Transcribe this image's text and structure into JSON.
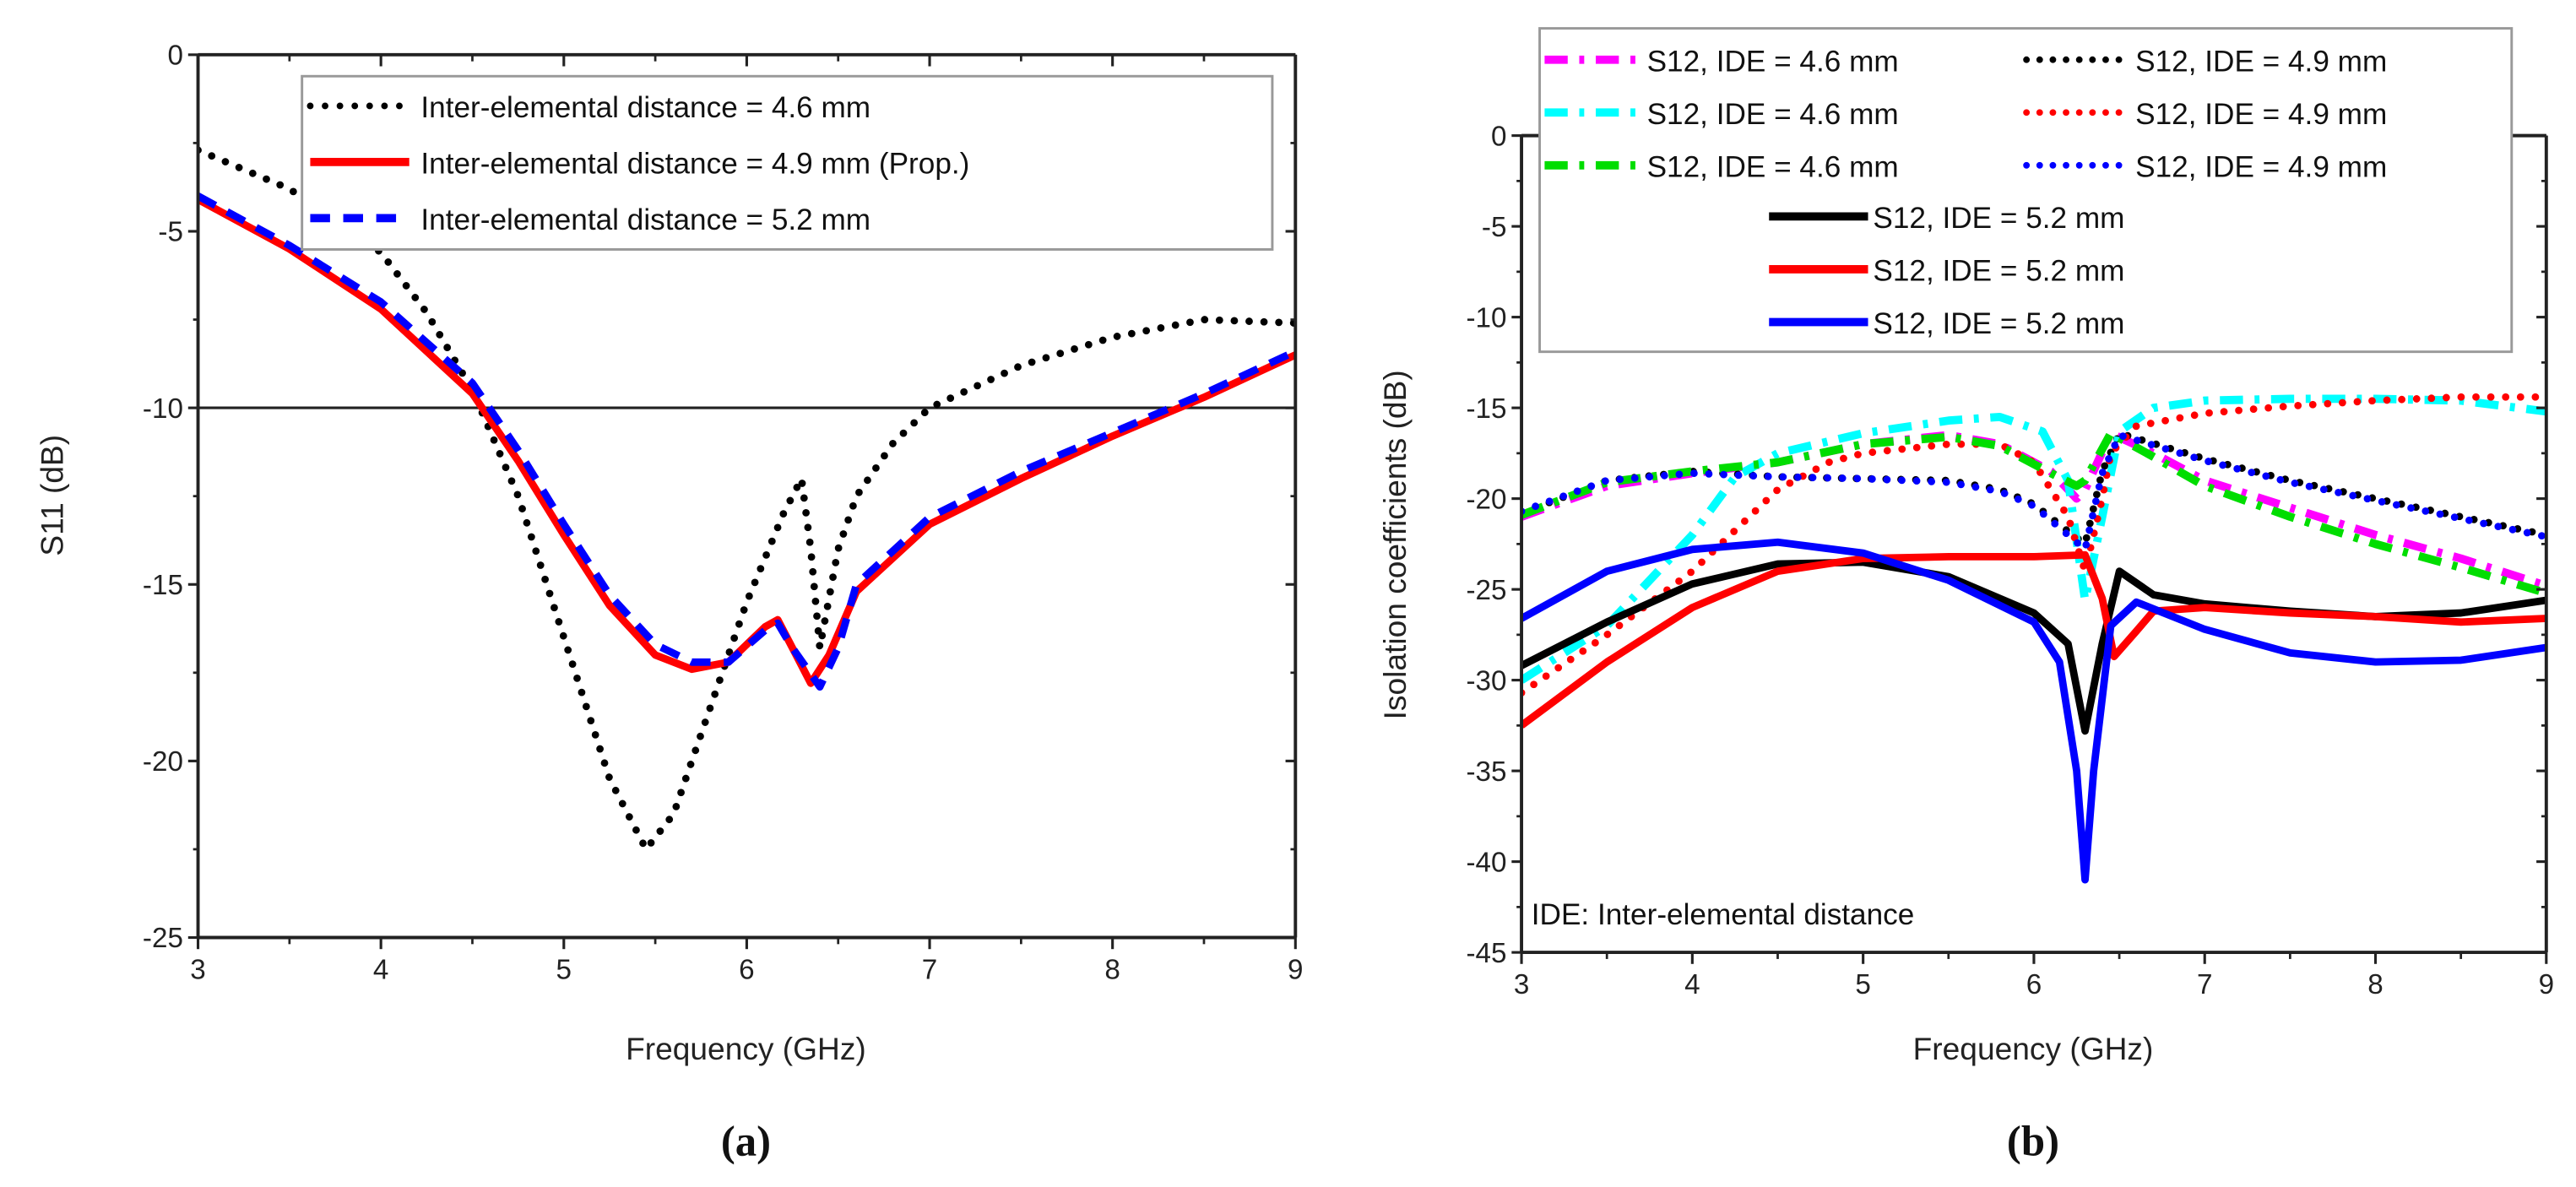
{
  "chart_data": [
    {
      "type": "line",
      "panel_label": "(a)",
      "xlabel": "Frequency (GHz)",
      "ylabel": "S11 (dB)",
      "xlim": [
        3,
        9
      ],
      "ylim": [
        -25,
        0
      ],
      "xticks": [
        "3",
        "4",
        "5",
        "6",
        "7",
        "8",
        "9"
      ],
      "yticks": [
        "0",
        "-5",
        "-10",
        "-15",
        "-20",
        "-25"
      ],
      "reference_line": -10,
      "legend_position": "top-right",
      "series": [
        {
          "name": "Inter-elemental distance = 4.6 mm",
          "color": "#000000",
          "style": "dotted",
          "x": [
            3,
            3.5,
            4,
            4.25,
            4.5,
            4.75,
            5,
            5.25,
            5.45,
            5.6,
            5.8,
            6.0,
            6.2,
            6.3,
            6.35,
            6.4,
            6.5,
            6.6,
            6.8,
            7.0,
            7.5,
            8,
            8.5,
            9
          ],
          "y": [
            -2.7,
            -3.8,
            -5.6,
            -7.3,
            -9.5,
            -12.5,
            -16.5,
            -20.5,
            -22.5,
            -21.5,
            -18.5,
            -15.5,
            -13,
            -12,
            -14,
            -16.8,
            -14,
            -12.5,
            -11,
            -10,
            -8.8,
            -8,
            -7.5,
            -7.6
          ]
        },
        {
          "name": "Inter-elemental distance = 4.9 mm (Prop.)",
          "color": "#ff0000",
          "style": "solid",
          "x": [
            3,
            3.5,
            4,
            4.5,
            4.75,
            5,
            5.25,
            5.5,
            5.7,
            5.9,
            6.1,
            6.17,
            6.25,
            6.35,
            6.45,
            6.6,
            7,
            7.5,
            8,
            8.5,
            9
          ],
          "y": [
            -4.1,
            -5.5,
            -7.2,
            -9.6,
            -11.5,
            -13.6,
            -15.6,
            -17,
            -17.4,
            -17.2,
            -16.2,
            -16,
            -16.8,
            -17.8,
            -17,
            -15.2,
            -13.3,
            -12,
            -10.8,
            -9.7,
            -8.5
          ]
        },
        {
          "name": "Inter-elemental distance = 5.2 mm",
          "color": "#0000ff",
          "style": "dashed",
          "x": [
            3,
            3.5,
            4,
            4.5,
            4.75,
            5,
            5.25,
            5.5,
            5.7,
            5.9,
            6.1,
            6.17,
            6.25,
            6.4,
            6.5,
            6.6,
            7,
            7.5,
            8,
            8.5,
            9
          ],
          "y": [
            -4.0,
            -5.4,
            -7.0,
            -9.3,
            -11.2,
            -13.3,
            -15.3,
            -16.7,
            -17.2,
            -17.2,
            -16.3,
            -16.1,
            -16.8,
            -17.9,
            -16.8,
            -15.0,
            -13.1,
            -11.8,
            -10.7,
            -9.6,
            -8.4
          ]
        }
      ]
    },
    {
      "type": "line",
      "panel_label": "(b)",
      "xlabel": "Frequency (GHz)",
      "ylabel": "Isolation coefficients (dB)",
      "xlim": [
        3,
        9
      ],
      "ylim": [
        -45,
        0
      ],
      "xticks": [
        "3",
        "4",
        "5",
        "6",
        "7",
        "8",
        "9"
      ],
      "yticks": [
        "0",
        "-5",
        "-10",
        "-15",
        "-20",
        "-25",
        "-30",
        "-35",
        "-40",
        "-45"
      ],
      "annotation": "IDE: Inter-elemental distance",
      "legend_position": "top",
      "series": [
        {
          "name": "S12, IDE = 4.6 mm",
          "color": "#ff00ff",
          "style": "dashdot",
          "x": [
            3,
            3.5,
            4,
            4.5,
            5,
            5.5,
            5.8,
            6.1,
            6.25,
            6.3,
            6.45,
            6.7,
            7,
            7.5,
            8,
            8.5,
            9
          ],
          "y": [
            -21,
            -19.3,
            -18.6,
            -18,
            -17,
            -16.5,
            -17,
            -18.5,
            -20,
            -19.5,
            -16.4,
            -17.5,
            -19,
            -20.5,
            -22,
            -23.3,
            -24.8
          ]
        },
        {
          "name": "S12, IDE = 4.9 mm",
          "color": "#000000",
          "style": "dotted",
          "x": [
            3,
            3.5,
            4,
            4.5,
            5,
            5.5,
            5.8,
            6,
            6.2,
            6.3,
            6.4,
            6.5,
            7,
            7.5,
            8,
            8.5,
            9
          ],
          "y": [
            -20.8,
            -19,
            -18.5,
            -18.8,
            -18.9,
            -19,
            -19.5,
            -20.3,
            -21.8,
            -22.5,
            -18.5,
            -16.4,
            -17.8,
            -19,
            -20,
            -21,
            -22
          ]
        },
        {
          "name": "S12, IDE = 4.6 mm",
          "color": "#00ffff",
          "style": "dashdot",
          "x": [
            3,
            3.5,
            3.8,
            4,
            4.25,
            4.5,
            5,
            5.5,
            5.8,
            6.05,
            6.2,
            6.3,
            6.4,
            6.5,
            6.7,
            7,
            7.5,
            8,
            8.5,
            9
          ],
          "y": [
            -30,
            -27,
            -24,
            -22,
            -18.8,
            -17.5,
            -16.4,
            -15.7,
            -15.5,
            -16.3,
            -19,
            -25.6,
            -21,
            -16.3,
            -15,
            -14.6,
            -14.5,
            -14.5,
            -14.6,
            -15.2
          ]
        },
        {
          "name": "S12, IDE = 4.9 mm",
          "color": "#ff0000",
          "style": "dotted",
          "x": [
            3,
            3.5,
            4,
            4.5,
            4.8,
            5,
            5.5,
            5.8,
            6,
            6.2,
            6.3,
            6.4,
            6.45,
            6.6,
            7,
            7.5,
            8,
            8.5,
            9
          ],
          "y": [
            -30.7,
            -27.5,
            -24,
            -19.5,
            -18,
            -17.5,
            -17,
            -17,
            -18,
            -21,
            -24,
            -20,
            -17.5,
            -16,
            -15.3,
            -14.9,
            -14.6,
            -14.4,
            -14.4
          ]
        },
        {
          "name": "S12, IDE = 4.6 mm",
          "color": "#00dd00",
          "style": "dashdot",
          "x": [
            3,
            3.5,
            4,
            4.5,
            5,
            5.5,
            5.8,
            6.1,
            6.25,
            6.3,
            6.45,
            6.7,
            7,
            7.5,
            8,
            8.5,
            9
          ],
          "y": [
            -20.9,
            -19.1,
            -18.5,
            -18,
            -17,
            -16.6,
            -17.1,
            -18.6,
            -19.3,
            -19,
            -16.4,
            -17.7,
            -19.3,
            -21,
            -22.5,
            -23.8,
            -25.2
          ]
        },
        {
          "name": "S12, IDE = 4.9 mm",
          "color": "#0000ff",
          "style": "dotted",
          "x": [
            3,
            3.5,
            4,
            4.5,
            5,
            5.5,
            5.8,
            6,
            6.2,
            6.3,
            6.4,
            6.5,
            7,
            7.5,
            8,
            8.5,
            9
          ],
          "y": [
            -20.7,
            -19,
            -18.6,
            -18.8,
            -18.9,
            -19.1,
            -19.6,
            -20.4,
            -22,
            -22.8,
            -18.6,
            -16.5,
            -17.9,
            -19.1,
            -20.1,
            -21.1,
            -22.1
          ]
        },
        {
          "name": "S12, IDE = 5.2 mm",
          "color": "#000000",
          "style": "solid",
          "x": [
            3,
            3.5,
            4,
            4.5,
            5,
            5.5,
            6,
            6.2,
            6.3,
            6.4,
            6.5,
            6.7,
            7,
            7.5,
            8,
            8.5,
            9
          ],
          "y": [
            -29.2,
            -26.8,
            -24.7,
            -23.6,
            -23.5,
            -24.3,
            -26.3,
            -28,
            -32.8,
            -28,
            -24,
            -25.3,
            -25.8,
            -26.2,
            -26.5,
            -26.3,
            -25.6
          ]
        },
        {
          "name": "S12, IDE = 5.2 mm",
          "color": "#ff0000",
          "style": "solid",
          "x": [
            3,
            3.5,
            4,
            4.5,
            5,
            5.5,
            6,
            6.3,
            6.4,
            6.47,
            6.6,
            6.7,
            7,
            7.5,
            8,
            8.5,
            9
          ],
          "y": [
            -32.5,
            -29,
            -26,
            -24,
            -23.3,
            -23.2,
            -23.2,
            -23.1,
            -25.5,
            -28.7,
            -27.3,
            -26.2,
            -26,
            -26.3,
            -26.5,
            -26.8,
            -26.6
          ]
        },
        {
          "name": "S12, IDE = 5.2 mm",
          "color": "#0000ff",
          "style": "solid",
          "x": [
            3,
            3.5,
            4,
            4.5,
            5,
            5.5,
            6,
            6.15,
            6.25,
            6.3,
            6.35,
            6.45,
            6.6,
            7,
            7.5,
            8,
            8.5,
            9
          ],
          "y": [
            -26.6,
            -24,
            -22.8,
            -22.4,
            -23,
            -24.5,
            -26.8,
            -29,
            -35,
            -41,
            -35,
            -27,
            -25.7,
            -27.2,
            -28.5,
            -29,
            -28.9,
            -28.2
          ]
        }
      ]
    }
  ]
}
